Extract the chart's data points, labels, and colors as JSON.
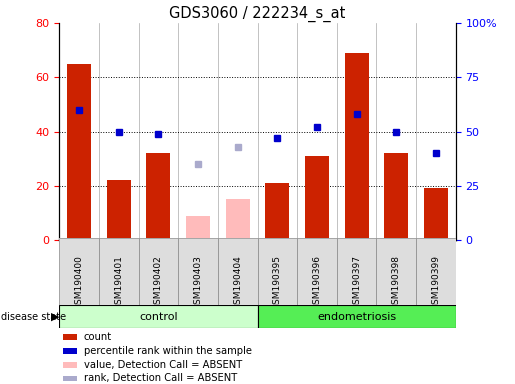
{
  "title": "GDS3060 / 222234_s_at",
  "samples": [
    "GSM190400",
    "GSM190401",
    "GSM190402",
    "GSM190403",
    "GSM190404",
    "GSM190395",
    "GSM190396",
    "GSM190397",
    "GSM190398",
    "GSM190399"
  ],
  "count_values": [
    65,
    22,
    32,
    null,
    null,
    21,
    31,
    69,
    32,
    19
  ],
  "count_absent": [
    null,
    null,
    null,
    9,
    15,
    null,
    null,
    null,
    null,
    null
  ],
  "percentile_values": [
    60,
    50,
    49,
    null,
    null,
    47,
    52,
    58,
    50,
    40
  ],
  "percentile_absent": [
    null,
    null,
    null,
    35,
    43,
    null,
    null,
    null,
    null,
    null
  ],
  "control_count": 5,
  "endometriosis_count": 5,
  "ylim_left": [
    0,
    80
  ],
  "ylim_right": [
    0,
    100
  ],
  "bar_color": "#cc2200",
  "bar_absent_color": "#ffbbbb",
  "dot_color": "#0000cc",
  "dot_absent_color": "#aaaacc",
  "control_bg": "#ccffcc",
  "endometriosis_bg": "#55ee55",
  "tick_bg": "#dddddd",
  "legend_items": [
    {
      "color": "#cc2200",
      "label": "count"
    },
    {
      "color": "#0000cc",
      "label": "percentile rank within the sample"
    },
    {
      "color": "#ffbbbb",
      "label": "value, Detection Call = ABSENT"
    },
    {
      "color": "#aaaacc",
      "label": "rank, Detection Call = ABSENT"
    }
  ]
}
